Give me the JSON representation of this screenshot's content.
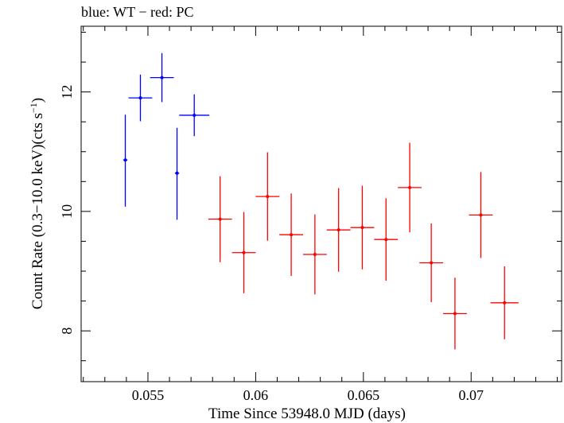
{
  "chart_data": {
    "type": "scatter",
    "title": "blue: WT − red: PC",
    "xlabel": "Time Since 53948.0 MJD (days)",
    "ylabel_main": "Count Rate (0.3−10.0 keV)(cts s",
    "ylabel_sup": "−1",
    "ylabel_close": ")",
    "xlim": [
      0.0519,
      0.0742
    ],
    "ylim": [
      7.15,
      13.1
    ],
    "x_ticks": [
      0.055,
      0.06,
      0.065,
      0.07
    ],
    "x_tick_labels": [
      "0.055",
      "0.06",
      "0.065",
      "0.07"
    ],
    "y_ticks": [
      8,
      10,
      12
    ],
    "y_tick_labels": [
      "8",
      "10",
      "12"
    ],
    "grid": false,
    "series": [
      {
        "name": "WT",
        "color": "#0000ff",
        "points": [
          {
            "x": 0.05395,
            "xerr": 0.0001,
            "y": 10.86,
            "yerr_lo": 0.78,
            "yerr_hi": 0.76
          },
          {
            "x": 0.05465,
            "xerr": 0.00055,
            "y": 11.9,
            "yerr_lo": 0.39,
            "yerr_hi": 0.39
          },
          {
            "x": 0.05565,
            "xerr": 0.00055,
            "y": 12.24,
            "yerr_lo": 0.41,
            "yerr_hi": 0.41
          },
          {
            "x": 0.05635,
            "xerr": 0.0001,
            "y": 10.64,
            "yerr_lo": 0.78,
            "yerr_hi": 0.76
          },
          {
            "x": 0.05715,
            "xerr": 0.0007,
            "y": 11.61,
            "yerr_lo": 0.35,
            "yerr_hi": 0.35
          }
        ]
      },
      {
        "name": "PC",
        "color": "#ff0000",
        "points": [
          {
            "x": 0.05835,
            "xerr": 0.00055,
            "y": 9.87,
            "yerr_lo": 0.72,
            "yerr_hi": 0.72
          },
          {
            "x": 0.05945,
            "xerr": 0.00055,
            "y": 9.31,
            "yerr_lo": 0.68,
            "yerr_hi": 0.68
          },
          {
            "x": 0.06055,
            "xerr": 0.00055,
            "y": 10.25,
            "yerr_lo": 0.74,
            "yerr_hi": 0.74
          },
          {
            "x": 0.06165,
            "xerr": 0.00055,
            "y": 9.61,
            "yerr_lo": 0.69,
            "yerr_hi": 0.69
          },
          {
            "x": 0.06275,
            "xerr": 0.00055,
            "y": 9.28,
            "yerr_lo": 0.67,
            "yerr_hi": 0.67
          },
          {
            "x": 0.06385,
            "xerr": 0.00055,
            "y": 9.69,
            "yerr_lo": 0.7,
            "yerr_hi": 0.7
          },
          {
            "x": 0.06495,
            "xerr": 0.00055,
            "y": 9.73,
            "yerr_lo": 0.7,
            "yerr_hi": 0.7
          },
          {
            "x": 0.06605,
            "xerr": 0.00055,
            "y": 9.53,
            "yerr_lo": 0.69,
            "yerr_hi": 0.69
          },
          {
            "x": 0.06715,
            "xerr": 0.00055,
            "y": 10.4,
            "yerr_lo": 0.75,
            "yerr_hi": 0.75
          },
          {
            "x": 0.06815,
            "xerr": 0.00055,
            "y": 9.14,
            "yerr_lo": 0.66,
            "yerr_hi": 0.66
          },
          {
            "x": 0.06925,
            "xerr": 0.00055,
            "y": 8.29,
            "yerr_lo": 0.6,
            "yerr_hi": 0.6
          },
          {
            "x": 0.07045,
            "xerr": 0.00055,
            "y": 9.94,
            "yerr_lo": 0.72,
            "yerr_hi": 0.72
          },
          {
            "x": 0.07155,
            "xerr": 0.00065,
            "y": 8.47,
            "yerr_lo": 0.61,
            "yerr_hi": 0.61
          }
        ]
      }
    ]
  }
}
